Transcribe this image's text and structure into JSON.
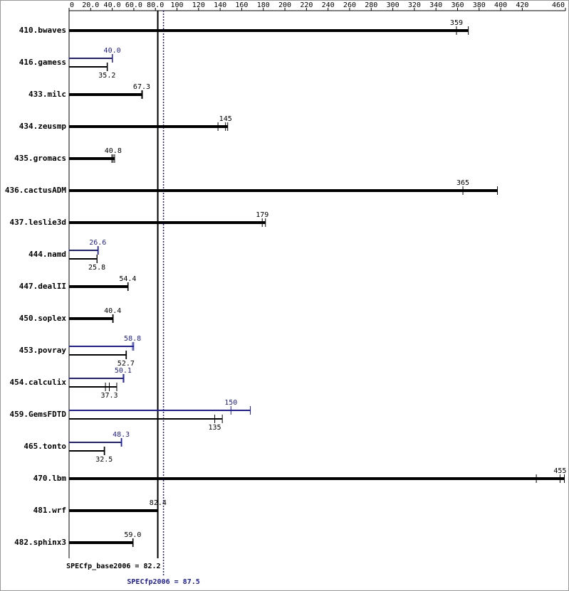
{
  "chart_data": {
    "type": "spec-bar",
    "xlim": [
      0,
      460
    ],
    "xticks": [
      0,
      {
        "value": 20,
        "label": "20.0"
      },
      {
        "value": 40,
        "label": "40.0"
      },
      {
        "value": 60,
        "label": "60.0"
      },
      {
        "value": 80,
        "label": "80.0"
      },
      100,
      120,
      140,
      160,
      180,
      200,
      220,
      240,
      260,
      280,
      300,
      320,
      340,
      360,
      380,
      400,
      420,
      460
    ],
    "base_color": "#000000",
    "peak_color": "#1c1c9c",
    "benchmarks": [
      {
        "name": "410.bwaves",
        "base": {
          "value": 359,
          "runs": [
            370
          ]
        }
      },
      {
        "name": "416.gamess",
        "peak": {
          "value": 40.0,
          "value_label": "40.0",
          "runs": [
            40.3
          ]
        },
        "base": {
          "value": 35.2,
          "runs": [
            35.6
          ]
        }
      },
      {
        "name": "433.milc",
        "base": {
          "value": 67.3,
          "runs": [
            68.0
          ]
        }
      },
      {
        "name": "434.zeusmp",
        "base": {
          "value": 145,
          "runs": [
            138,
            147
          ]
        }
      },
      {
        "name": "435.gromacs",
        "base": {
          "value": 40.8,
          "runs": [
            39.6,
            42.2
          ]
        }
      },
      {
        "name": "436.cactusADM",
        "base": {
          "value": 365,
          "runs": [
            397
          ]
        }
      },
      {
        "name": "437.leslie3d",
        "base": {
          "value": 179,
          "runs": [
            182
          ]
        }
      },
      {
        "name": "444.namd",
        "peak": {
          "value": 26.6,
          "runs": [
            27.1
          ]
        },
        "base": {
          "value": 25.8,
          "runs": [
            26.0
          ]
        }
      },
      {
        "name": "447.dealII",
        "base": {
          "value": 54.4,
          "runs": [
            54.8
          ]
        }
      },
      {
        "name": "450.soplex",
        "base": {
          "value": 40.4,
          "runs": [
            40.9
          ]
        }
      },
      {
        "name": "453.povray",
        "peak": {
          "value": 58.8,
          "runs": [
            59.9
          ]
        },
        "base": {
          "value": 52.7,
          "runs": [
            53.2
          ]
        }
      },
      {
        "name": "454.calculix",
        "peak": {
          "value": 50.1,
          "runs": [
            50.8
          ]
        },
        "base": {
          "value": 37.3,
          "runs": [
            33.7,
            44.2
          ]
        }
      },
      {
        "name": "459.GemsFDTD",
        "peak": {
          "value": 150,
          "runs": [
            168
          ]
        },
        "base": {
          "value": 135,
          "runs": [
            142
          ]
        }
      },
      {
        "name": "465.tonto",
        "peak": {
          "value": 48.3,
          "runs": [
            48.8
          ]
        },
        "base": {
          "value": 32.5,
          "runs": [
            33.0
          ]
        }
      },
      {
        "name": "470.lbm",
        "base": {
          "value": 455,
          "runs": [
            433,
            459
          ]
        }
      },
      {
        "name": "481.wrf",
        "base": {
          "value": 82.4,
          "runs": [
            82.5
          ]
        }
      },
      {
        "name": "482.sphinx3",
        "base": {
          "value": 59.0,
          "value_label": "59.0",
          "runs": [
            59.4
          ]
        }
      }
    ],
    "reference_lines": [
      {
        "label": "SPECfp_base2006 =",
        "value": 82.2,
        "color": "#000000",
        "style": "solid"
      },
      {
        "label": "SPECfp2006 =",
        "value": 87.5,
        "color": "#1c1c9c",
        "style": "dotted"
      }
    ]
  }
}
